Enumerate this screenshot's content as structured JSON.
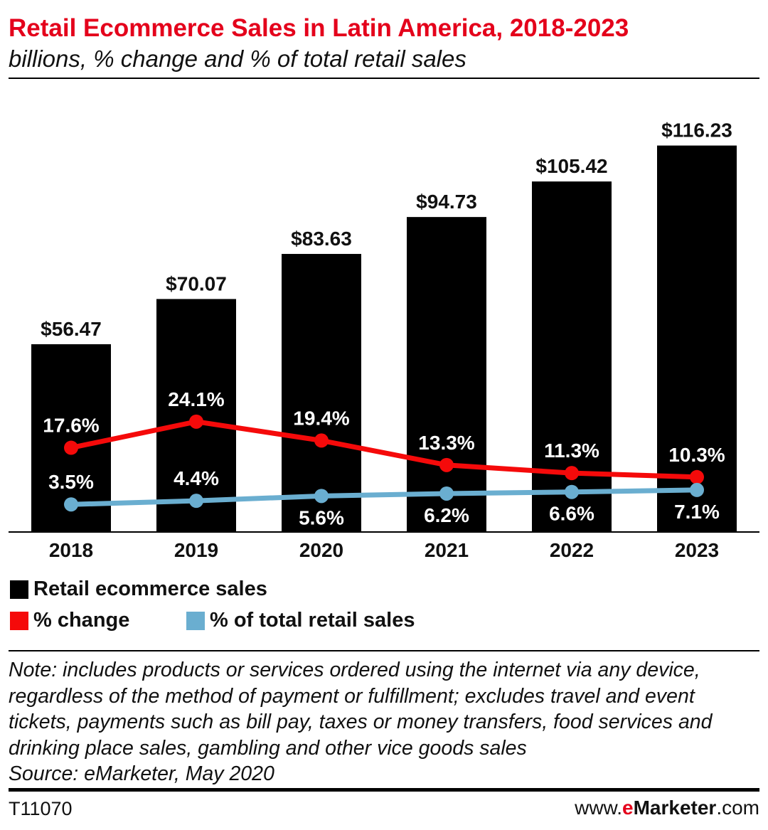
{
  "header": {
    "title": "Retail Ecommerce Sales in Latin America, 2018-2023",
    "subtitle": "billions, % change and % of total retail sales"
  },
  "chart_data": {
    "type": "bar",
    "title": "Retail Ecommerce Sales in Latin America, 2018-2023",
    "subtitle": "billions, % change and % of total retail sales",
    "categories": [
      "2018",
      "2019",
      "2020",
      "2021",
      "2022",
      "2023"
    ],
    "series": [
      {
        "name": "Retail ecommerce sales",
        "type": "bar",
        "color": "#000000",
        "values": [
          56.47,
          70.07,
          83.63,
          94.73,
          105.42,
          116.23
        ],
        "labels": [
          "$56.47",
          "$70.07",
          "$83.63",
          "$94.73",
          "$105.42",
          "$116.23"
        ]
      },
      {
        "name": "% change",
        "type": "line",
        "color": "#f50a0a",
        "values": [
          17.6,
          24.1,
          19.4,
          13.3,
          11.3,
          10.3
        ],
        "labels": [
          "17.6%",
          "24.1%",
          "19.4%",
          "13.3%",
          "11.3%",
          "10.3%"
        ]
      },
      {
        "name": "% of total retail sales",
        "type": "line",
        "color": "#6aaed0",
        "values": [
          3.5,
          4.4,
          5.6,
          6.2,
          6.6,
          7.1
        ],
        "labels": [
          "3.5%",
          "4.4%",
          "5.6%",
          "6.2%",
          "6.6%",
          "7.1%"
        ],
        "label_side": [
          "above",
          "above",
          "below",
          "below",
          "below",
          "below"
        ]
      }
    ],
    "legend_position": "bottom-left",
    "grid": false
  },
  "legend": {
    "sales": "Retail ecommerce sales",
    "change": "% change",
    "share": "% of total retail sales"
  },
  "note": "Note: includes products or services ordered using the internet via any device, regardless of the method of payment or fulfillment; excludes travel and event tickets, payments such as bill pay, taxes or money transfers, food services and drinking place sales, gambling and other vice goods sales",
  "source": "Source: eMarketer, May 2020",
  "footer": {
    "id": "T11070",
    "brand_pre": "www.",
    "brand_e": "e",
    "brand_m": "Marketer",
    "brand_post": ".com"
  }
}
